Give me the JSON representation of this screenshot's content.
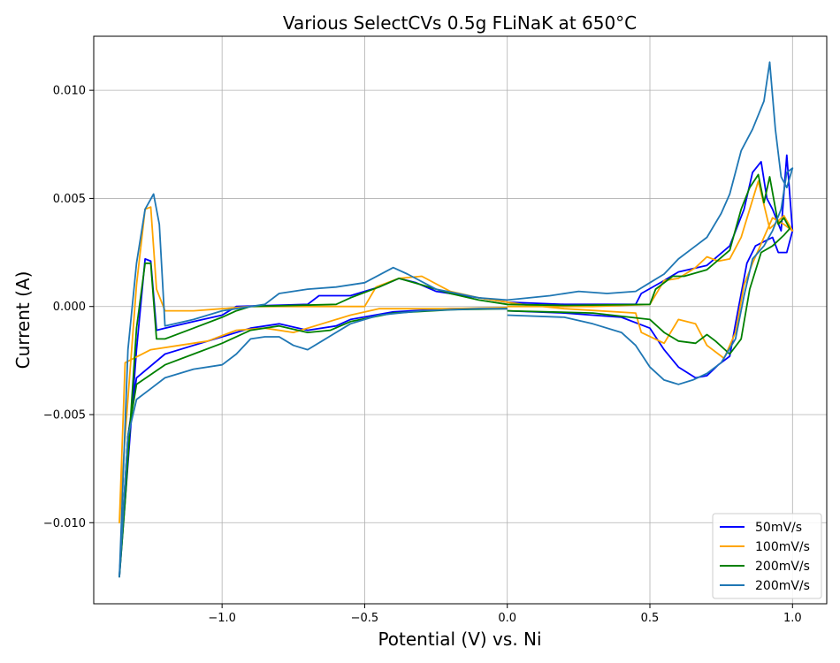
{
  "chart_data": {
    "type": "line",
    "title": "Various SelectCVs 0.5g FLiNaK at 650°C",
    "xlabel": "Potential (V) vs. Ni",
    "ylabel": "Current (A)",
    "xlim": [
      -1.45,
      1.12
    ],
    "ylim": [
      -0.01375,
      0.0125
    ],
    "x_ticks": [
      -1.0,
      -0.5,
      0.0,
      0.5,
      1.0
    ],
    "x_tick_labels": [
      "−1.0",
      "−0.5",
      "0.0",
      "0.5",
      "1.0"
    ],
    "y_ticks": [
      -0.01,
      -0.005,
      0.0,
      0.005,
      0.01
    ],
    "y_tick_labels": [
      "−0.010",
      "−0.005",
      "0.000",
      "0.005",
      "0.010"
    ],
    "grid": true,
    "legend_position": "bottom-right",
    "series": [
      {
        "name": "50mV/s",
        "color": "#0000ff",
        "points": [
          [
            0.0,
            -0.0001
          ],
          [
            -0.2,
            -0.0001
          ],
          [
            -0.4,
            -0.00025
          ],
          [
            -0.55,
            -0.0006
          ],
          [
            -0.6,
            -0.0009
          ],
          [
            -0.7,
            -0.0011
          ],
          [
            -0.8,
            -0.0008
          ],
          [
            -0.9,
            -0.001
          ],
          [
            -1.0,
            -0.0014
          ],
          [
            -1.1,
            -0.0018
          ],
          [
            -1.2,
            -0.0022
          ],
          [
            -1.3,
            -0.0033
          ],
          [
            -1.33,
            -0.006
          ],
          [
            -1.36,
            -0.0125
          ],
          [
            -1.34,
            -0.009
          ],
          [
            -1.3,
            -0.002
          ],
          [
            -1.27,
            0.0022
          ],
          [
            -1.25,
            0.0021
          ],
          [
            -1.23,
            -0.0011
          ],
          [
            -1.2,
            -0.001
          ],
          [
            -1.1,
            -0.0007
          ],
          [
            -1.0,
            -0.0004
          ],
          [
            -0.95,
            0.0
          ],
          [
            -0.7,
            0.0001
          ],
          [
            -0.66,
            0.0005
          ],
          [
            -0.55,
            0.0005
          ],
          [
            -0.45,
            0.0009
          ],
          [
            -0.38,
            0.0013
          ],
          [
            -0.32,
            0.0011
          ],
          [
            -0.25,
            0.0007
          ],
          [
            -0.1,
            0.0004
          ],
          [
            0.0,
            0.0002
          ],
          [
            0.2,
            0.0001
          ],
          [
            0.45,
            0.0001
          ],
          [
            0.47,
            0.0006
          ],
          [
            0.55,
            0.0012
          ],
          [
            0.6,
            0.0016
          ],
          [
            0.7,
            0.0019
          ],
          [
            0.78,
            0.0028
          ],
          [
            0.83,
            0.0045
          ],
          [
            0.86,
            0.0062
          ],
          [
            0.89,
            0.0067
          ],
          [
            0.91,
            0.005
          ],
          [
            0.93,
            0.0045
          ],
          [
            0.96,
            0.0035
          ],
          [
            0.98,
            0.007
          ],
          [
            1.0,
            0.0035
          ],
          [
            0.98,
            0.0025
          ],
          [
            0.95,
            0.0025
          ],
          [
            0.93,
            0.0032
          ],
          [
            0.9,
            0.003
          ],
          [
            0.87,
            0.0028
          ],
          [
            0.84,
            0.002
          ],
          [
            0.8,
            -0.0008
          ],
          [
            0.78,
            -0.0023
          ],
          [
            0.74,
            -0.0027
          ],
          [
            0.7,
            -0.0032
          ],
          [
            0.66,
            -0.0033
          ],
          [
            0.6,
            -0.0028
          ],
          [
            0.55,
            -0.002
          ],
          [
            0.5,
            -0.001
          ],
          [
            0.4,
            -0.0005
          ],
          [
            0.2,
            -0.0003
          ],
          [
            0.0,
            -0.0002
          ]
        ]
      },
      {
        "name": "100mV/s",
        "color": "#ffa500",
        "points": [
          [
            0.0,
            -5e-05
          ],
          [
            -0.2,
            -0.0001
          ],
          [
            -0.45,
            -0.0001
          ],
          [
            -0.55,
            -0.0004
          ],
          [
            -0.65,
            -0.0008
          ],
          [
            -0.75,
            -0.0012
          ],
          [
            -0.85,
            -0.001
          ],
          [
            -0.95,
            -0.0011
          ],
          [
            -1.05,
            -0.0016
          ],
          [
            -1.15,
            -0.0018
          ],
          [
            -1.25,
            -0.002
          ],
          [
            -1.34,
            -0.0026
          ],
          [
            -1.36,
            -0.01
          ],
          [
            -1.34,
            -0.006
          ],
          [
            -1.3,
            0.001
          ],
          [
            -1.27,
            0.0045
          ],
          [
            -1.25,
            0.0046
          ],
          [
            -1.23,
            0.0008
          ],
          [
            -1.2,
            -0.0002
          ],
          [
            -1.1,
            -0.0002
          ],
          [
            -1.0,
            -0.0001
          ],
          [
            -0.9,
            0.0
          ],
          [
            -0.5,
            0.0
          ],
          [
            -0.46,
            0.0009
          ],
          [
            -0.38,
            0.0013
          ],
          [
            -0.3,
            0.0014
          ],
          [
            -0.2,
            0.0007
          ],
          [
            -0.1,
            0.0004
          ],
          [
            0.0,
            0.0002
          ],
          [
            0.05,
            0.0001
          ],
          [
            0.2,
            -0.0001
          ],
          [
            0.45,
            -0.0003
          ],
          [
            0.47,
            -0.0012
          ],
          [
            0.55,
            -0.0017
          ],
          [
            0.6,
            -0.0006
          ],
          [
            0.66,
            -0.0008
          ],
          [
            0.7,
            -0.0018
          ],
          [
            0.76,
            -0.0024
          ],
          [
            0.8,
            -0.0012
          ],
          [
            0.83,
            0.001
          ],
          [
            0.86,
            0.002
          ],
          [
            0.9,
            0.0032
          ],
          [
            0.93,
            0.0041
          ],
          [
            0.97,
            0.0038
          ],
          [
            1.0,
            0.0035
          ],
          [
            0.97,
            0.0042
          ],
          [
            0.92,
            0.0036
          ],
          [
            0.88,
            0.0058
          ],
          [
            0.85,
            0.0045
          ],
          [
            0.82,
            0.0032
          ],
          [
            0.78,
            0.0022
          ],
          [
            0.74,
            0.0021
          ],
          [
            0.7,
            0.0023
          ],
          [
            0.66,
            0.0018
          ],
          [
            0.6,
            0.0013
          ],
          [
            0.55,
            0.0012
          ],
          [
            0.5,
            0.0001
          ],
          [
            0.3,
            0.0
          ],
          [
            0.0,
            0.0
          ]
        ]
      },
      {
        "name": "200mV/s",
        "color": "#008000",
        "points": [
          [
            0.0,
            -0.0001
          ],
          [
            -0.2,
            -0.00015
          ],
          [
            -0.4,
            -0.0003
          ],
          [
            -0.55,
            -0.0007
          ],
          [
            -0.62,
            -0.0011
          ],
          [
            -0.7,
            -0.0012
          ],
          [
            -0.8,
            -0.0009
          ],
          [
            -0.9,
            -0.0011
          ],
          [
            -1.0,
            -0.0017
          ],
          [
            -1.1,
            -0.0022
          ],
          [
            -1.2,
            -0.0027
          ],
          [
            -1.3,
            -0.0036
          ],
          [
            -1.33,
            -0.006
          ],
          [
            -1.36,
            -0.0125
          ],
          [
            -1.34,
            -0.009
          ],
          [
            -1.3,
            -0.001
          ],
          [
            -1.27,
            0.002
          ],
          [
            -1.25,
            0.002
          ],
          [
            -1.23,
            -0.0015
          ],
          [
            -1.2,
            -0.0015
          ],
          [
            -1.1,
            -0.001
          ],
          [
            -1.0,
            -0.0005
          ],
          [
            -0.95,
            -0.0002
          ],
          [
            -0.9,
            0.0
          ],
          [
            -0.6,
            0.0001
          ],
          [
            -0.55,
            0.0004
          ],
          [
            -0.45,
            0.0009
          ],
          [
            -0.38,
            0.0013
          ],
          [
            -0.3,
            0.001
          ],
          [
            -0.2,
            0.0006
          ],
          [
            -0.1,
            0.0003
          ],
          [
            0.0,
            0.0001
          ],
          [
            0.2,
            5e-05
          ],
          [
            0.5,
            0.0001
          ],
          [
            0.52,
            0.0008
          ],
          [
            0.58,
            0.0014
          ],
          [
            0.62,
            0.0014
          ],
          [
            0.7,
            0.0017
          ],
          [
            0.78,
            0.0026
          ],
          [
            0.82,
            0.0045
          ],
          [
            0.85,
            0.0055
          ],
          [
            0.88,
            0.0061
          ],
          [
            0.9,
            0.0048
          ],
          [
            0.92,
            0.006
          ],
          [
            0.95,
            0.0038
          ],
          [
            0.97,
            0.0041
          ],
          [
            0.99,
            0.0036
          ],
          [
            0.97,
            0.0033
          ],
          [
            0.93,
            0.0028
          ],
          [
            0.89,
            0.0025
          ],
          [
            0.85,
            0.0008
          ],
          [
            0.82,
            -0.0015
          ],
          [
            0.78,
            -0.0022
          ],
          [
            0.73,
            -0.0016
          ],
          [
            0.7,
            -0.0013
          ],
          [
            0.66,
            -0.0017
          ],
          [
            0.6,
            -0.0016
          ],
          [
            0.55,
            -0.0012
          ],
          [
            0.5,
            -0.0006
          ],
          [
            0.3,
            -0.0003
          ],
          [
            0.0,
            -0.0002
          ]
        ]
      },
      {
        "name": "200mV/s",
        "color": "#1f77b4",
        "points": [
          [
            0.0,
            -0.0004
          ],
          [
            0.2,
            -0.0005
          ],
          [
            0.3,
            -0.0008
          ],
          [
            0.4,
            -0.0012
          ],
          [
            0.45,
            -0.0018
          ],
          [
            0.5,
            -0.0028
          ],
          [
            0.55,
            -0.0034
          ],
          [
            0.6,
            -0.0036
          ],
          [
            0.65,
            -0.0034
          ],
          [
            0.7,
            -0.0031
          ],
          [
            0.75,
            -0.0026
          ],
          [
            0.8,
            -0.0015
          ],
          [
            0.83,
            0.0005
          ],
          [
            0.86,
            0.0022
          ],
          [
            0.9,
            0.0028
          ],
          [
            0.93,
            0.0035
          ],
          [
            0.96,
            0.0045
          ],
          [
            0.98,
            0.0062
          ],
          [
            1.0,
            0.0064
          ],
          [
            0.98,
            0.0055
          ],
          [
            0.96,
            0.006
          ],
          [
            0.94,
            0.0082
          ],
          [
            0.92,
            0.0113
          ],
          [
            0.9,
            0.0095
          ],
          [
            0.86,
            0.0082
          ],
          [
            0.82,
            0.0072
          ],
          [
            0.78,
            0.0052
          ],
          [
            0.75,
            0.0043
          ],
          [
            0.7,
            0.0032
          ],
          [
            0.65,
            0.0027
          ],
          [
            0.6,
            0.0022
          ],
          [
            0.55,
            0.0015
          ],
          [
            0.5,
            0.0011
          ],
          [
            0.45,
            0.0007
          ],
          [
            0.35,
            0.0006
          ],
          [
            0.25,
            0.0007
          ],
          [
            0.15,
            0.0005
          ],
          [
            0.0,
            0.0003
          ],
          [
            -0.1,
            0.0004
          ],
          [
            -0.25,
            0.0008
          ],
          [
            -0.35,
            0.0015
          ],
          [
            -0.4,
            0.0018
          ],
          [
            -0.5,
            0.0011
          ],
          [
            -0.6,
            0.0009
          ],
          [
            -0.7,
            0.0008
          ],
          [
            -0.8,
            0.0006
          ],
          [
            -0.85,
            0.0001
          ],
          [
            -1.0,
            -0.0002
          ],
          [
            -1.1,
            -0.0006
          ],
          [
            -1.2,
            -0.0009
          ],
          [
            -1.22,
            0.0038
          ],
          [
            -1.24,
            0.0052
          ],
          [
            -1.27,
            0.0045
          ],
          [
            -1.3,
            0.002
          ],
          [
            -1.33,
            -0.002
          ],
          [
            -1.36,
            -0.0125
          ],
          [
            -1.33,
            -0.006
          ],
          [
            -1.3,
            -0.0043
          ],
          [
            -1.25,
            -0.0038
          ],
          [
            -1.2,
            -0.0033
          ],
          [
            -1.1,
            -0.0029
          ],
          [
            -1.0,
            -0.0027
          ],
          [
            -0.95,
            -0.0022
          ],
          [
            -0.9,
            -0.0015
          ],
          [
            -0.85,
            -0.0014
          ],
          [
            -0.8,
            -0.0014
          ],
          [
            -0.75,
            -0.0018
          ],
          [
            -0.7,
            -0.002
          ],
          [
            -0.65,
            -0.0016
          ],
          [
            -0.55,
            -0.0008
          ],
          [
            -0.45,
            -0.0004
          ],
          [
            -0.3,
            -0.0002
          ],
          [
            -0.1,
            -0.0001
          ],
          [
            0.0,
            -0.0001
          ]
        ]
      }
    ]
  }
}
